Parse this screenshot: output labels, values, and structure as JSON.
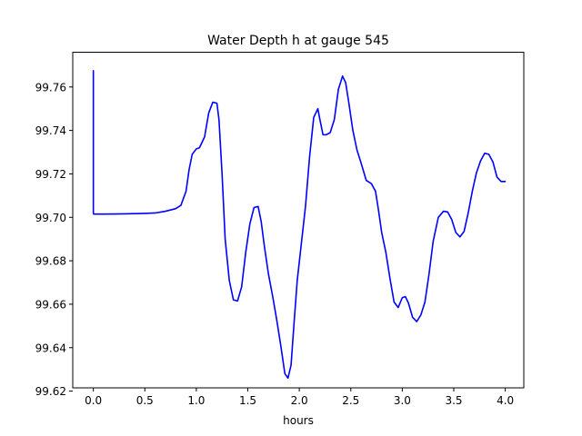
{
  "chart_data": {
    "type": "line",
    "title": "Water Depth h at gauge 545",
    "xlabel": "hours",
    "ylabel": "",
    "xlim": [
      -0.2,
      4.18
    ],
    "ylim": [
      99.6215,
      99.776
    ],
    "xticks": [
      0.0,
      0.5,
      1.0,
      1.5,
      2.0,
      2.5,
      3.0,
      3.5,
      4.0
    ],
    "xtick_labels": [
      "0.0",
      "0.5",
      "1.0",
      "1.5",
      "2.0",
      "2.5",
      "3.0",
      "3.5",
      "4.0"
    ],
    "yticks": [
      99.62,
      99.64,
      99.66,
      99.68,
      99.7,
      99.72,
      99.74,
      99.76
    ],
    "ytick_labels": [
      "99.62",
      "99.64",
      "99.66",
      "99.68",
      "99.70",
      "99.72",
      "99.74",
      "99.76"
    ],
    "grid": false,
    "legend": false,
    "series": [
      {
        "color": "#0000ff",
        "x": [
          0.0,
          0.0,
          0.003,
          0.01,
          0.1,
          0.3,
          0.5,
          0.6,
          0.7,
          0.8,
          0.85,
          0.9,
          0.93,
          0.96,
          1.0,
          1.03,
          1.08,
          1.12,
          1.16,
          1.2,
          1.22,
          1.25,
          1.28,
          1.32,
          1.36,
          1.4,
          1.44,
          1.48,
          1.52,
          1.56,
          1.6,
          1.63,
          1.66,
          1.7,
          1.74,
          1.78,
          1.82,
          1.86,
          1.89,
          1.92,
          1.95,
          1.98,
          2.02,
          2.06,
          2.1,
          2.14,
          2.18,
          2.2,
          2.23,
          2.26,
          2.3,
          2.34,
          2.38,
          2.42,
          2.45,
          2.48,
          2.52,
          2.56,
          2.6,
          2.65,
          2.7,
          2.74,
          2.77,
          2.8,
          2.84,
          2.88,
          2.92,
          2.96,
          3.0,
          3.03,
          3.06,
          3.1,
          3.14,
          3.18,
          3.22,
          3.26,
          3.3,
          3.35,
          3.4,
          3.44,
          3.48,
          3.52,
          3.56,
          3.6,
          3.64,
          3.68,
          3.72,
          3.76,
          3.8,
          3.84,
          3.88,
          3.92,
          3.96,
          4.0
        ],
        "y": [
          99.7675,
          99.702,
          99.7015,
          99.7015,
          99.7015,
          99.7016,
          99.7018,
          99.702,
          99.7028,
          99.704,
          99.7055,
          99.712,
          99.722,
          99.729,
          99.7315,
          99.732,
          99.737,
          99.748,
          99.753,
          99.7525,
          99.745,
          99.72,
          99.69,
          99.671,
          99.662,
          99.6615,
          99.668,
          99.684,
          99.697,
          99.7045,
          99.705,
          99.698,
          99.687,
          99.674,
          99.664,
          99.653,
          99.641,
          99.628,
          99.626,
          99.632,
          99.652,
          99.671,
          99.688,
          99.705,
          99.728,
          99.746,
          99.75,
          99.745,
          99.738,
          99.738,
          99.739,
          99.745,
          99.759,
          99.765,
          99.762,
          99.753,
          99.74,
          99.731,
          99.725,
          99.717,
          99.7155,
          99.712,
          99.703,
          99.693,
          99.684,
          99.672,
          99.661,
          99.6585,
          99.663,
          99.6635,
          99.6605,
          99.654,
          99.652,
          99.655,
          99.661,
          99.674,
          99.689,
          99.7,
          99.7028,
          99.7025,
          99.699,
          99.693,
          99.691,
          99.6935,
          99.702,
          99.712,
          99.7205,
          99.726,
          99.7295,
          99.729,
          99.7255,
          99.7185,
          99.7165,
          99.7165
        ]
      }
    ]
  }
}
